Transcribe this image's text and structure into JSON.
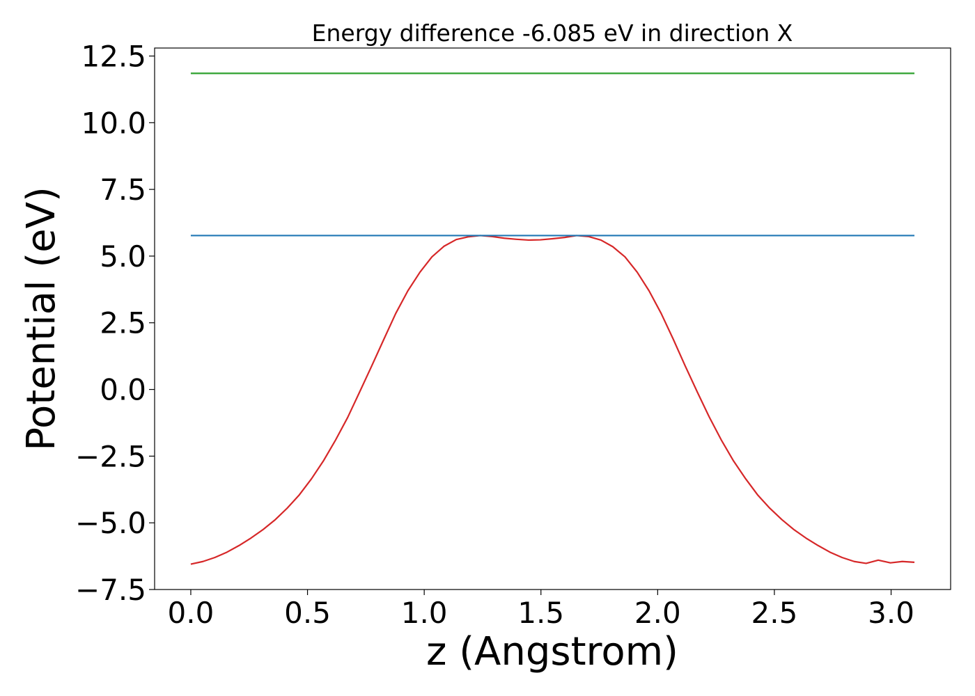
{
  "chart_data": {
    "type": "line",
    "title": "Energy difference -6.085 eV in direction X",
    "xlabel": "z (Angstrom)",
    "ylabel": "Potential (eV)",
    "xlim": [
      -0.155,
      3.255
    ],
    "ylim": [
      -7.5,
      12.8
    ],
    "xticks": [
      0.0,
      0.5,
      1.0,
      1.5,
      2.0,
      2.5,
      3.0
    ],
    "xtick_labels": [
      "0.0",
      "0.5",
      "1.0",
      "1.5",
      "2.0",
      "2.5",
      "3.0"
    ],
    "yticks": [
      -7.5,
      -5.0,
      -2.5,
      0.0,
      2.5,
      5.0,
      7.5,
      10.0,
      12.5
    ],
    "ytick_labels": [
      "−7.5",
      "−5.0",
      "−2.5",
      "0.0",
      "2.5",
      "5.0",
      "7.5",
      "10.0",
      "12.5"
    ],
    "grid": false,
    "legend": "none",
    "series": [
      {
        "color": "#d62728",
        "x": [
          0.0,
          0.052,
          0.103,
          0.155,
          0.207,
          0.258,
          0.31,
          0.362,
          0.413,
          0.465,
          0.517,
          0.568,
          0.62,
          0.672,
          0.723,
          0.775,
          0.827,
          0.878,
          0.93,
          0.982,
          1.033,
          1.085,
          1.137,
          1.188,
          1.24,
          1.292,
          1.343,
          1.395,
          1.447,
          1.498,
          1.55,
          1.602,
          1.653,
          1.705,
          1.757,
          1.808,
          1.86,
          1.912,
          1.963,
          2.015,
          2.067,
          2.118,
          2.17,
          2.222,
          2.273,
          2.325,
          2.377,
          2.428,
          2.48,
          2.532,
          2.583,
          2.635,
          2.687,
          2.738,
          2.79,
          2.842,
          2.893,
          2.945,
          2.997,
          3.048,
          3.1
        ],
        "y": [
          -6.55,
          -6.45,
          -6.3,
          -6.1,
          -5.85,
          -5.57,
          -5.25,
          -4.88,
          -4.45,
          -3.95,
          -3.35,
          -2.68,
          -1.9,
          -1.05,
          -0.1,
          0.88,
          1.88,
          2.85,
          3.7,
          4.4,
          4.97,
          5.37,
          5.62,
          5.72,
          5.77,
          5.73,
          5.67,
          5.63,
          5.6,
          5.61,
          5.65,
          5.7,
          5.77,
          5.73,
          5.6,
          5.35,
          4.97,
          4.4,
          3.7,
          2.85,
          1.88,
          0.88,
          -0.1,
          -1.05,
          -1.9,
          -2.68,
          -3.35,
          -3.95,
          -4.45,
          -4.88,
          -5.25,
          -5.57,
          -5.85,
          -6.1,
          -6.3,
          -6.45,
          -6.52,
          -6.4,
          -6.5,
          -6.45,
          -6.48
        ]
      },
      {
        "color": "#1f77b4",
        "x": [
          0.0,
          3.1
        ],
        "y": [
          5.77,
          5.77
        ]
      },
      {
        "color": "#2ca02c",
        "x": [
          0.0,
          3.1
        ],
        "y": [
          11.85,
          11.85
        ]
      }
    ]
  }
}
